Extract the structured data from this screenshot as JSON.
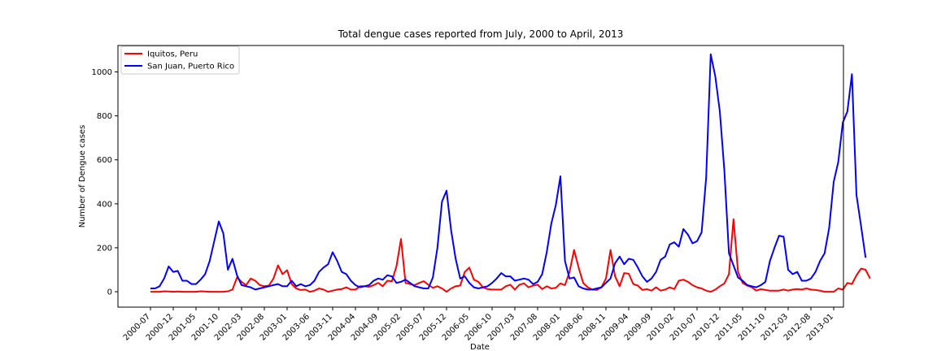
{
  "chart_data": {
    "type": "line",
    "title": "Total dengue cases reported from July, 2000 to April, 2013",
    "xlabel": "Date",
    "ylabel": "Number of Dengue cases",
    "ylim": [
      -70,
      1120
    ],
    "yticks": [
      0,
      200,
      400,
      600,
      800,
      1000
    ],
    "legend_position": "top-left",
    "grid": false,
    "x_start": "2000-07",
    "x_tick_labels": [
      "2000-07",
      "2000-12",
      "2001-05",
      "2001-10",
      "2002-03",
      "2002-08",
      "2003-01",
      "2003-06",
      "2003-11",
      "2004-04",
      "2004-09",
      "2005-02",
      "2005-07",
      "2005-12",
      "2006-05",
      "2006-10",
      "2007-03",
      "2007-08",
      "2008-01",
      "2008-06",
      "2008-11",
      "2009-04",
      "2009-09",
      "2010-02",
      "2010-07",
      "2010-12",
      "2011-05",
      "2011-10",
      "2012-03",
      "2012-08",
      "2013-01"
    ],
    "series": [
      {
        "name": "Iquitos, Peru",
        "color": "#ff0000",
        "values": [
          0,
          0,
          0,
          2,
          1,
          0,
          1,
          0,
          0,
          0,
          0,
          2,
          1,
          0,
          0,
          0,
          0,
          2,
          10,
          65,
          45,
          30,
          60,
          50,
          30,
          25,
          28,
          60,
          120,
          80,
          98,
          35,
          15,
          8,
          10,
          0,
          5,
          15,
          10,
          0,
          5,
          10,
          12,
          20,
          10,
          10,
          25,
          25,
          22,
          30,
          40,
          25,
          50,
          48,
          115,
          240,
          40,
          35,
          30,
          40,
          48,
          32,
          18,
          25,
          15,
          0,
          15,
          25,
          28,
          90,
          110,
          55,
          45,
          20,
          12,
          10,
          10,
          10,
          25,
          32,
          10,
          32,
          38,
          20,
          28,
          32,
          12,
          25,
          15,
          18,
          38,
          30,
          90,
          190,
          110,
          40,
          20,
          10,
          8,
          20,
          60,
          190,
          70,
          25,
          85,
          82,
          35,
          28,
          8,
          12,
          5,
          20,
          5,
          10,
          20,
          12,
          50,
          55,
          45,
          30,
          20,
          15,
          5,
          0,
          10,
          25,
          38,
          80,
          330,
          90,
          40,
          28,
          20,
          5,
          12,
          8,
          5,
          5,
          5,
          10,
          5,
          10,
          12,
          10,
          15,
          10,
          8,
          5,
          0,
          0,
          0,
          15,
          10,
          40,
          35,
          75,
          105,
          100,
          60
        ]
      },
      {
        "name": "San Juan, Puerto Rico",
        "color": "#0000ff",
        "values": [
          15,
          15,
          25,
          60,
          115,
          90,
          95,
          50,
          50,
          35,
          35,
          55,
          80,
          140,
          230,
          320,
          265,
          100,
          150,
          75,
          30,
          25,
          20,
          10,
          15,
          20,
          25,
          30,
          35,
          25,
          25,
          50,
          25,
          35,
          25,
          30,
          50,
          90,
          110,
          125,
          180,
          140,
          90,
          80,
          50,
          30,
          20,
          25,
          30,
          50,
          60,
          55,
          75,
          70,
          40,
          45,
          55,
          40,
          25,
          20,
          15,
          15,
          65,
          200,
          410,
          460,
          280,
          150,
          60,
          70,
          40,
          20,
          15,
          20,
          25,
          40,
          60,
          85,
          70,
          70,
          50,
          55,
          60,
          55,
          35,
          45,
          80,
          180,
          310,
          395,
          525,
          140,
          60,
          65,
          25,
          15,
          10,
          10,
          15,
          20,
          40,
          60,
          130,
          160,
          125,
          150,
          145,
          110,
          70,
          45,
          60,
          90,
          145,
          160,
          215,
          225,
          205,
          285,
          260,
          220,
          230,
          270,
          520,
          1080,
          980,
          820,
          550,
          175,
          120,
          65,
          50,
          30,
          25,
          20,
          30,
          45,
          140,
          200,
          255,
          250,
          100,
          80,
          90,
          50,
          50,
          60,
          90,
          140,
          175,
          290,
          500,
          590,
          770,
          820,
          990,
          440,
          300,
          155
        ]
      }
    ]
  }
}
